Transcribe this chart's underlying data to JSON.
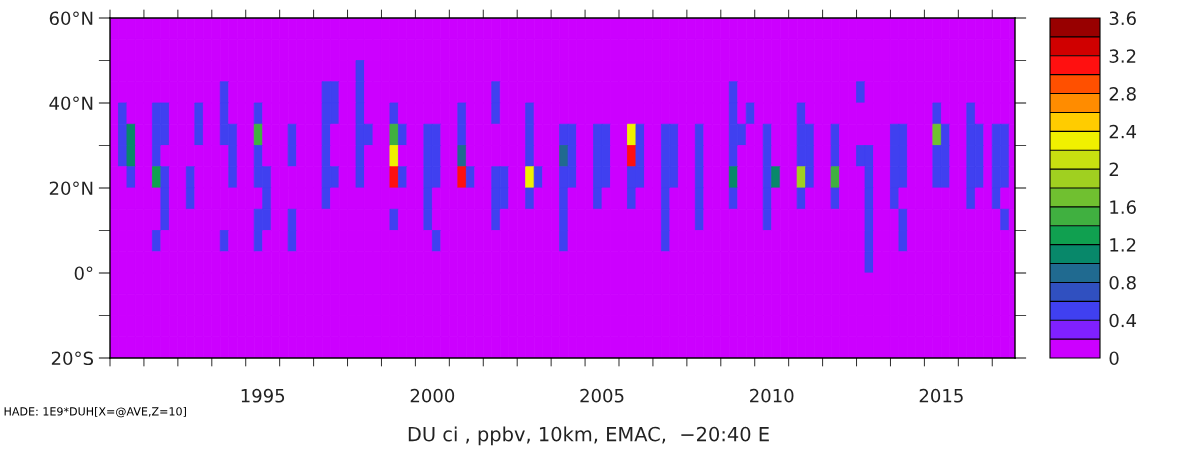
{
  "chart_data": {
    "type": "heatmap",
    "xlabel": "DU ci , ppbv, 10km, EMAC,  −20:40 E",
    "annotations": [
      "HADE: 1E9*DUH[X=@AVE,Z=10]"
    ],
    "x": [
      1991.125,
      1991.375,
      1991.625,
      1991.875,
      1992.125,
      1992.375,
      1992.625,
      1992.875,
      1993.125,
      1993.375,
      1993.625,
      1993.875,
      1994.125,
      1994.375,
      1994.625,
      1994.875,
      1995.125,
      1995.375,
      1995.625,
      1995.875,
      1996.125,
      1996.375,
      1996.625,
      1996.875,
      1997.125,
      1997.375,
      1997.625,
      1997.875,
      1998.125,
      1998.375,
      1998.625,
      1998.875,
      1999.125,
      1999.375,
      1999.625,
      1999.875,
      2000.125,
      2000.375,
      2000.625,
      2000.875,
      2001.125,
      2001.375,
      2001.625,
      2001.875,
      2002.125,
      2002.375,
      2002.625,
      2002.875,
      2003.125,
      2003.375,
      2003.625,
      2003.875,
      2004.125,
      2004.375,
      2004.625,
      2004.875,
      2005.125,
      2005.375,
      2005.625,
      2005.875,
      2006.125,
      2006.375,
      2006.625,
      2006.875,
      2007.125,
      2007.375,
      2007.625,
      2007.875,
      2008.125,
      2008.375,
      2008.625,
      2008.875,
      2009.125,
      2009.375,
      2009.625,
      2009.875,
      2010.125,
      2010.375,
      2010.625,
      2010.875,
      2011.125,
      2011.375,
      2011.625,
      2011.875,
      2012.125,
      2012.375,
      2012.625,
      2012.875,
      2013.125,
      2013.375,
      2013.625,
      2013.875,
      2014.125,
      2014.375,
      2014.625,
      2014.875,
      2015.125,
      2015.375,
      2015.625,
      2015.875,
      2016.125,
      2016.375,
      2016.625,
      2016.875,
      2017.125,
      2017.375,
      2017.625
    ],
    "y": [
      57.5,
      52.5,
      47.5,
      42.5,
      37.5,
      32.5,
      27.5,
      22.5,
      17.5,
      12.5,
      7.5,
      2.5,
      -2.5,
      -7.5,
      -12.5,
      -17.5
    ],
    "cells": [
      [
        0,
        0,
        0,
        0,
        0,
        0,
        0,
        0,
        0,
        0,
        0,
        0,
        0,
        0,
        0,
        0,
        0,
        0,
        0,
        0,
        0,
        0,
        0,
        0,
        0,
        0,
        0,
        0,
        0,
        0,
        0,
        0,
        0,
        0,
        0,
        0,
        0,
        0,
        0,
        0,
        0,
        0,
        0,
        0,
        0,
        0,
        0,
        0,
        0,
        0,
        0,
        0,
        0,
        0,
        0,
        0,
        0,
        0,
        0,
        0,
        0,
        0,
        0,
        0,
        0,
        0,
        0,
        0,
        0,
        0,
        0,
        0,
        0,
        0,
        0,
        0,
        0,
        0,
        0,
        0,
        0,
        0,
        0,
        0,
        0,
        0,
        0,
        0,
        0,
        0,
        0,
        0,
        0,
        0,
        0,
        0,
        0,
        0,
        0,
        0,
        0,
        0,
        0,
        0,
        0,
        0,
        0
      ],
      [
        0,
        0,
        0,
        0,
        0,
        0,
        0,
        0,
        0,
        0,
        0,
        0,
        0,
        0,
        0,
        0,
        0,
        0,
        0,
        0,
        0,
        0,
        0,
        0,
        0,
        0,
        0,
        0,
        0,
        0,
        0,
        0,
        0,
        0,
        0,
        0,
        0,
        0,
        0,
        0,
        0,
        0,
        0,
        0,
        0,
        0,
        0,
        0,
        0,
        0,
        0,
        0,
        0,
        0,
        0,
        0,
        0,
        0,
        0,
        0,
        0,
        0,
        0,
        0,
        0,
        0,
        0,
        0,
        0,
        0,
        0,
        0,
        0,
        0,
        0,
        0,
        0,
        0,
        0,
        0,
        0,
        0,
        0,
        0,
        0,
        0,
        0,
        0,
        0,
        0,
        0,
        0,
        0,
        0,
        0,
        0,
        0,
        0,
        0,
        0,
        0,
        0,
        0,
        0,
        0,
        0,
        0
      ],
      [
        0,
        0,
        0,
        0,
        0,
        0,
        0,
        0,
        0,
        0,
        0,
        0,
        0,
        0,
        0,
        0,
        0,
        0,
        0,
        0,
        0,
        0,
        0,
        0,
        0,
        0,
        0,
        0,
        0,
        0.5,
        0,
        0,
        0,
        0,
        0,
        0,
        0,
        0,
        0,
        0,
        0,
        0,
        0,
        0,
        0,
        0,
        0,
        0,
        0,
        0,
        0,
        0,
        0,
        0,
        0,
        0,
        0,
        0,
        0,
        0,
        0,
        0,
        0,
        0,
        0,
        0,
        0,
        0,
        0,
        0,
        0,
        0,
        0,
        0,
        0,
        0,
        0,
        0,
        0,
        0,
        0,
        0,
        0,
        0,
        0,
        0,
        0,
        0,
        0,
        0,
        0,
        0,
        0,
        0,
        0,
        0,
        0,
        0,
        0,
        0,
        0,
        0,
        0,
        0,
        0,
        0,
        0
      ],
      [
        0,
        0,
        0,
        0,
        0,
        0,
        0,
        0,
        0,
        0,
        0,
        0,
        0,
        0.5,
        0,
        0,
        0,
        0,
        0,
        0,
        0,
        0,
        0,
        0,
        0,
        0.5,
        0.5,
        0,
        0,
        0.5,
        0,
        0,
        0,
        0,
        0,
        0,
        0,
        0,
        0,
        0,
        0,
        0,
        0,
        0,
        0,
        0.5,
        0,
        0,
        0,
        0,
        0,
        0,
        0,
        0,
        0,
        0,
        0,
        0,
        0,
        0,
        0,
        0,
        0,
        0,
        0,
        0,
        0,
        0,
        0,
        0,
        0,
        0,
        0,
        0.5,
        0,
        0,
        0,
        0,
        0,
        0,
        0,
        0,
        0,
        0,
        0,
        0,
        0,
        0,
        0.5,
        0,
        0,
        0,
        0,
        0,
        0,
        0,
        0,
        0,
        0,
        0,
        0,
        0,
        0,
        0,
        0,
        0,
        0
      ],
      [
        0,
        0.5,
        0,
        0,
        0,
        0.5,
        0.5,
        0,
        0,
        0,
        0.5,
        0,
        0,
        0.5,
        0,
        0,
        0,
        0.5,
        0,
        0,
        0,
        0,
        0,
        0,
        0,
        0.5,
        0.5,
        0,
        0,
        0.5,
        0,
        0,
        0,
        0.5,
        0,
        0,
        0,
        0,
        0,
        0,
        0,
        0.5,
        0,
        0,
        0,
        0.5,
        0,
        0,
        0,
        0.5,
        0,
        0,
        0,
        0,
        0,
        0,
        0,
        0,
        0,
        0,
        0,
        0,
        0,
        0,
        0,
        0,
        0,
        0,
        0,
        0,
        0,
        0,
        0,
        0.5,
        0,
        0.5,
        0,
        0,
        0,
        0,
        0,
        0.5,
        0,
        0,
        0,
        0,
        0,
        0,
        0,
        0,
        0,
        0,
        0,
        0,
        0,
        0,
        0,
        0.5,
        0,
        0,
        0,
        0.5,
        0,
        0,
        0,
        0,
        0
      ],
      [
        0,
        0.5,
        1.0,
        0,
        0,
        0.5,
        0.5,
        0,
        0,
        0,
        0.5,
        0,
        0,
        0.5,
        0.5,
        0,
        0,
        1.5,
        0,
        0,
        0,
        0.5,
        0,
        0,
        0,
        0.5,
        0,
        0,
        0,
        0.5,
        0.5,
        0,
        0,
        1.5,
        0.5,
        0,
        0,
        0.5,
        0.5,
        0,
        0,
        0.5,
        0,
        0,
        0,
        0,
        0,
        0,
        0,
        0.5,
        0,
        0,
        0,
        0.5,
        0.5,
        0,
        0,
        0.5,
        0.5,
        0,
        0,
        2.2,
        0.5,
        0,
        0,
        0.5,
        0.5,
        0,
        0,
        0.5,
        0,
        0,
        0,
        0.5,
        0.5,
        0,
        0,
        0.5,
        0,
        0,
        0,
        0.5,
        0.5,
        0,
        0,
        0.5,
        0,
        0,
        0,
        0,
        0,
        0,
        0.5,
        0.5,
        0,
        0,
        0,
        1.6,
        0.5,
        0,
        0,
        0.5,
        0.5,
        0,
        0.5,
        0.5,
        0
      ],
      [
        0,
        0.5,
        1.0,
        0,
        0,
        0.5,
        0,
        0,
        0,
        0,
        0,
        0,
        0,
        0,
        0.5,
        0,
        0,
        0.5,
        0,
        0,
        0,
        0.5,
        0,
        0,
        0,
        0.5,
        0,
        0,
        0,
        0.5,
        0,
        0,
        0,
        2.3,
        0,
        0,
        0,
        0.5,
        0.5,
        0,
        0,
        0.9,
        0,
        0,
        0,
        0,
        0,
        0,
        0,
        0.5,
        0,
        0,
        0,
        0.9,
        0.5,
        0,
        0,
        0.5,
        0.5,
        0,
        0,
        3.1,
        0.5,
        0,
        0,
        0.5,
        0.5,
        0,
        0,
        0.5,
        0,
        0,
        0,
        0.5,
        0,
        0,
        0,
        0.5,
        0,
        0,
        0,
        0.5,
        0.5,
        0,
        0,
        0.5,
        0,
        0,
        0.5,
        0.5,
        0,
        0,
        0.5,
        0.5,
        0,
        0,
        0,
        0.5,
        0.5,
        0,
        0,
        0.5,
        0.5,
        0,
        0.5,
        0.5,
        0
      ],
      [
        0,
        0,
        0.5,
        0,
        0,
        1.3,
        0.5,
        0,
        0,
        0.5,
        0,
        0,
        0,
        0,
        0.5,
        0,
        0,
        0.5,
        0.5,
        0,
        0,
        0,
        0,
        0,
        0,
        0.5,
        0.5,
        0,
        0,
        0.5,
        0,
        0,
        0,
        3.1,
        0.5,
        0,
        0,
        0.5,
        0.5,
        0,
        0,
        3.0,
        0.5,
        0,
        0,
        0.5,
        0.5,
        0,
        0,
        2.2,
        0.5,
        0,
        0,
        0.5,
        0.5,
        0,
        0,
        0.5,
        0.5,
        0,
        0,
        0.5,
        0.5,
        0,
        0,
        0.5,
        0.5,
        0,
        0,
        0.5,
        0,
        0,
        0,
        1.0,
        0,
        0,
        0,
        0.5,
        1.1,
        0,
        0,
        1.9,
        0.5,
        0,
        0,
        1.5,
        0,
        0,
        0,
        0.5,
        0,
        0,
        0.5,
        0.5,
        0,
        0,
        0,
        0.5,
        0.5,
        0,
        0,
        0.5,
        0.5,
        0,
        0.5,
        0.5,
        0
      ],
      [
        0,
        0,
        0,
        0,
        0,
        0,
        0.5,
        0,
        0,
        0.5,
        0,
        0,
        0,
        0,
        0,
        0,
        0,
        0,
        0.5,
        0,
        0,
        0,
        0,
        0,
        0,
        0.5,
        0,
        0,
        0,
        0,
        0,
        0,
        0,
        0,
        0,
        0,
        0,
        0.5,
        0,
        0,
        0,
        0,
        0,
        0,
        0,
        0.5,
        0.5,
        0,
        0,
        0.5,
        0,
        0,
        0,
        0.5,
        0,
        0,
        0,
        0.5,
        0,
        0,
        0,
        0.5,
        0,
        0,
        0,
        0.5,
        0,
        0,
        0,
        0.5,
        0,
        0,
        0,
        0.5,
        0,
        0,
        0,
        0.5,
        0,
        0,
        0,
        0.5,
        0,
        0,
        0,
        0.5,
        0,
        0,
        0,
        0.5,
        0,
        0,
        0.5,
        0,
        0,
        0,
        0,
        0,
        0,
        0,
        0,
        0.5,
        0,
        0,
        0.5,
        0,
        0
      ],
      [
        0,
        0,
        0,
        0,
        0,
        0,
        0.5,
        0,
        0,
        0,
        0,
        0,
        0,
        0,
        0,
        0,
        0,
        0.5,
        0.5,
        0,
        0,
        0.5,
        0,
        0,
        0,
        0,
        0,
        0,
        0,
        0,
        0,
        0,
        0,
        0.5,
        0,
        0,
        0,
        0.5,
        0,
        0,
        0,
        0,
        0,
        0,
        0,
        0.5,
        0,
        0,
        0,
        0,
        0,
        0,
        0,
        0.5,
        0,
        0,
        0,
        0,
        0,
        0,
        0,
        0,
        0,
        0,
        0,
        0.5,
        0,
        0,
        0,
        0.5,
        0,
        0,
        0,
        0,
        0,
        0,
        0,
        0.5,
        0,
        0,
        0,
        0,
        0,
        0,
        0,
        0,
        0,
        0,
        0,
        0.5,
        0,
        0,
        0,
        0.5,
        0,
        0,
        0,
        0,
        0,
        0,
        0,
        0,
        0,
        0,
        0,
        0.5,
        0
      ],
      [
        0,
        0,
        0,
        0,
        0,
        0.5,
        0,
        0,
        0,
        0,
        0,
        0,
        0,
        0.5,
        0,
        0,
        0,
        0.5,
        0,
        0,
        0,
        0.5,
        0,
        0,
        0,
        0,
        0,
        0,
        0,
        0,
        0,
        0,
        0,
        0,
        0,
        0,
        0,
        0,
        0.5,
        0,
        0,
        0,
        0,
        0,
        0,
        0,
        0,
        0,
        0,
        0,
        0,
        0,
        0,
        0.5,
        0,
        0,
        0,
        0,
        0,
        0,
        0,
        0,
        0,
        0,
        0,
        0.5,
        0,
        0,
        0,
        0,
        0,
        0,
        0,
        0,
        0,
        0,
        0,
        0,
        0,
        0,
        0,
        0,
        0,
        0,
        0,
        0,
        0,
        0,
        0,
        0.5,
        0,
        0,
        0,
        0.5,
        0,
        0,
        0,
        0,
        0,
        0,
        0,
        0,
        0,
        0,
        0,
        0,
        0
      ],
      [
        0,
        0,
        0,
        0,
        0,
        0,
        0,
        0,
        0,
        0,
        0,
        0,
        0,
        0,
        0,
        0,
        0,
        0,
        0,
        0,
        0,
        0,
        0,
        0,
        0,
        0,
        0,
        0,
        0,
        0,
        0,
        0,
        0,
        0,
        0,
        0,
        0,
        0,
        0,
        0,
        0,
        0,
        0,
        0,
        0,
        0,
        0,
        0,
        0,
        0,
        0,
        0,
        0,
        0,
        0,
        0,
        0,
        0,
        0,
        0,
        0,
        0,
        0,
        0,
        0,
        0,
        0,
        0,
        0,
        0,
        0,
        0,
        0,
        0,
        0,
        0,
        0,
        0,
        0,
        0,
        0,
        0,
        0,
        0,
        0,
        0,
        0,
        0,
        0,
        0.5,
        0,
        0,
        0,
        0,
        0,
        0,
        0,
        0,
        0,
        0,
        0,
        0,
        0,
        0,
        0,
        0,
        0
      ],
      [
        0,
        0,
        0,
        0,
        0,
        0,
        0,
        0,
        0,
        0,
        0,
        0,
        0,
        0,
        0,
        0,
        0,
        0,
        0,
        0,
        0,
        0,
        0,
        0,
        0,
        0,
        0,
        0,
        0,
        0,
        0,
        0,
        0,
        0,
        0,
        0,
        0,
        0,
        0,
        0,
        0,
        0,
        0,
        0,
        0,
        0,
        0,
        0,
        0,
        0,
        0,
        0,
        0,
        0,
        0,
        0,
        0,
        0,
        0,
        0,
        0,
        0,
        0,
        0,
        0,
        0,
        0,
        0,
        0,
        0,
        0,
        0,
        0,
        0,
        0,
        0,
        0,
        0,
        0,
        0,
        0,
        0,
        0,
        0,
        0,
        0,
        0,
        0,
        0,
        0,
        0,
        0,
        0,
        0,
        0,
        0,
        0,
        0,
        0,
        0,
        0,
        0,
        0,
        0,
        0,
        0,
        0
      ],
      [
        0,
        0,
        0,
        0,
        0,
        0,
        0,
        0,
        0,
        0,
        0,
        0,
        0,
        0,
        0,
        0,
        0,
        0,
        0,
        0,
        0,
        0,
        0,
        0,
        0,
        0,
        0,
        0,
        0,
        0,
        0,
        0,
        0,
        0,
        0,
        0,
        0,
        0,
        0,
        0,
        0,
        0,
        0,
        0,
        0,
        0,
        0,
        0,
        0,
        0,
        0,
        0,
        0,
        0,
        0,
        0,
        0,
        0,
        0,
        0,
        0,
        0,
        0,
        0,
        0,
        0,
        0,
        0,
        0,
        0,
        0,
        0,
        0,
        0,
        0,
        0,
        0,
        0,
        0,
        0,
        0,
        0,
        0,
        0,
        0,
        0,
        0,
        0,
        0,
        0,
        0,
        0,
        0,
        0,
        0,
        0,
        0,
        0,
        0,
        0,
        0,
        0,
        0,
        0,
        0,
        0,
        0
      ],
      [
        0,
        0,
        0,
        0,
        0,
        0,
        0,
        0,
        0,
        0,
        0,
        0,
        0,
        0,
        0,
        0,
        0,
        0,
        0,
        0,
        0,
        0,
        0,
        0,
        0,
        0,
        0,
        0,
        0,
        0,
        0,
        0,
        0,
        0,
        0,
        0,
        0,
        0,
        0,
        0,
        0,
        0,
        0,
        0,
        0,
        0,
        0,
        0,
        0,
        0,
        0,
        0,
        0,
        0,
        0,
        0,
        0,
        0,
        0,
        0,
        0,
        0,
        0,
        0,
        0,
        0,
        0,
        0,
        0,
        0,
        0,
        0,
        0,
        0,
        0,
        0,
        0,
        0,
        0,
        0,
        0,
        0,
        0,
        0,
        0,
        0,
        0,
        0,
        0,
        0,
        0,
        0,
        0,
        0,
        0,
        0,
        0,
        0,
        0,
        0,
        0,
        0,
        0,
        0,
        0,
        0,
        0
      ],
      [
        0,
        0,
        0,
        0,
        0,
        0,
        0,
        0,
        0,
        0,
        0,
        0,
        0,
        0,
        0,
        0,
        0,
        0,
        0,
        0,
        0,
        0,
        0,
        0,
        0,
        0,
        0,
        0,
        0,
        0,
        0,
        0,
        0,
        0,
        0,
        0,
        0,
        0,
        0,
        0,
        0,
        0,
        0,
        0,
        0,
        0,
        0,
        0,
        0,
        0,
        0,
        0,
        0,
        0,
        0,
        0,
        0,
        0,
        0,
        0,
        0,
        0,
        0,
        0,
        0,
        0,
        0,
        0,
        0,
        0,
        0,
        0,
        0,
        0,
        0,
        0,
        0,
        0,
        0,
        0,
        0,
        0,
        0,
        0,
        0,
        0,
        0,
        0,
        0,
        0,
        0,
        0,
        0,
        0,
        0,
        0,
        0,
        0,
        0,
        0,
        0,
        0,
        0,
        0,
        0,
        0,
        0
      ]
    ],
    "colors": [
      "#cc00ff",
      "#8020ff",
      "#4040f0",
      "#3050c0",
      "#206a90",
      "#08886a",
      "#10a050",
      "#40b040",
      "#70c030",
      "#a0d020",
      "#c8e010",
      "#f0f000",
      "#ffcc00",
      "#ff8c00",
      "#ff5000",
      "#ff1010",
      "#d00000",
      "#980000"
    ],
    "clim": [
      0,
      3.6
    ],
    "cticks": [
      0,
      0.4,
      0.8,
      1.2,
      1.6,
      2,
      2.4,
      2.8,
      3.2,
      3.6
    ],
    "xlim": [
      1991,
      2017.67
    ],
    "xticks": [
      {
        "value": 1991,
        "label": null
      },
      {
        "value": 1992,
        "label": null
      },
      {
        "value": 1993,
        "label": null
      },
      {
        "value": 1994,
        "label": null
      },
      {
        "value": 1995,
        "label": null
      },
      {
        "value": 1996,
        "label": null
      },
      {
        "value": 1997,
        "label": null
      },
      {
        "value": 1998,
        "label": null
      },
      {
        "value": 1999,
        "label": null
      },
      {
        "value": 2000,
        "label": null
      },
      {
        "value": 2001,
        "label": null
      },
      {
        "value": 2002,
        "label": null
      },
      {
        "value": 2003,
        "label": null
      },
      {
        "value": 2004,
        "label": null
      },
      {
        "value": 2005,
        "label": null
      },
      {
        "value": 2006,
        "label": null
      },
      {
        "value": 2007,
        "label": null
      },
      {
        "value": 2008,
        "label": null
      },
      {
        "value": 2009,
        "label": null
      },
      {
        "value": 2010,
        "label": null
      },
      {
        "value": 2011,
        "label": null
      },
      {
        "value": 2012,
        "label": null
      },
      {
        "value": 2013,
        "label": null
      },
      {
        "value": 2014,
        "label": null
      },
      {
        "value": 2015,
        "label": null
      },
      {
        "value": 2016,
        "label": null
      },
      {
        "value": 2017,
        "label": null
      },
      {
        "value": 1995.5,
        "label": "1995"
      },
      {
        "value": 2000.5,
        "label": "2000"
      },
      {
        "value": 2005.5,
        "label": "2005"
      },
      {
        "value": 2010.5,
        "label": "2010"
      },
      {
        "value": 2015.5,
        "label": "2015"
      }
    ],
    "ylim": [
      -20,
      60
    ],
    "yticks": [
      {
        "value": 60,
        "label": "60°N"
      },
      {
        "value": 50,
        "label": null
      },
      {
        "value": 40,
        "label": "40°N"
      },
      {
        "value": 30,
        "label": null
      },
      {
        "value": 20,
        "label": "20°N"
      },
      {
        "value": 10,
        "label": null
      },
      {
        "value": 0,
        "label": "0°"
      },
      {
        "value": -10,
        "label": null
      },
      {
        "value": -20,
        "label": "20°S"
      }
    ]
  }
}
